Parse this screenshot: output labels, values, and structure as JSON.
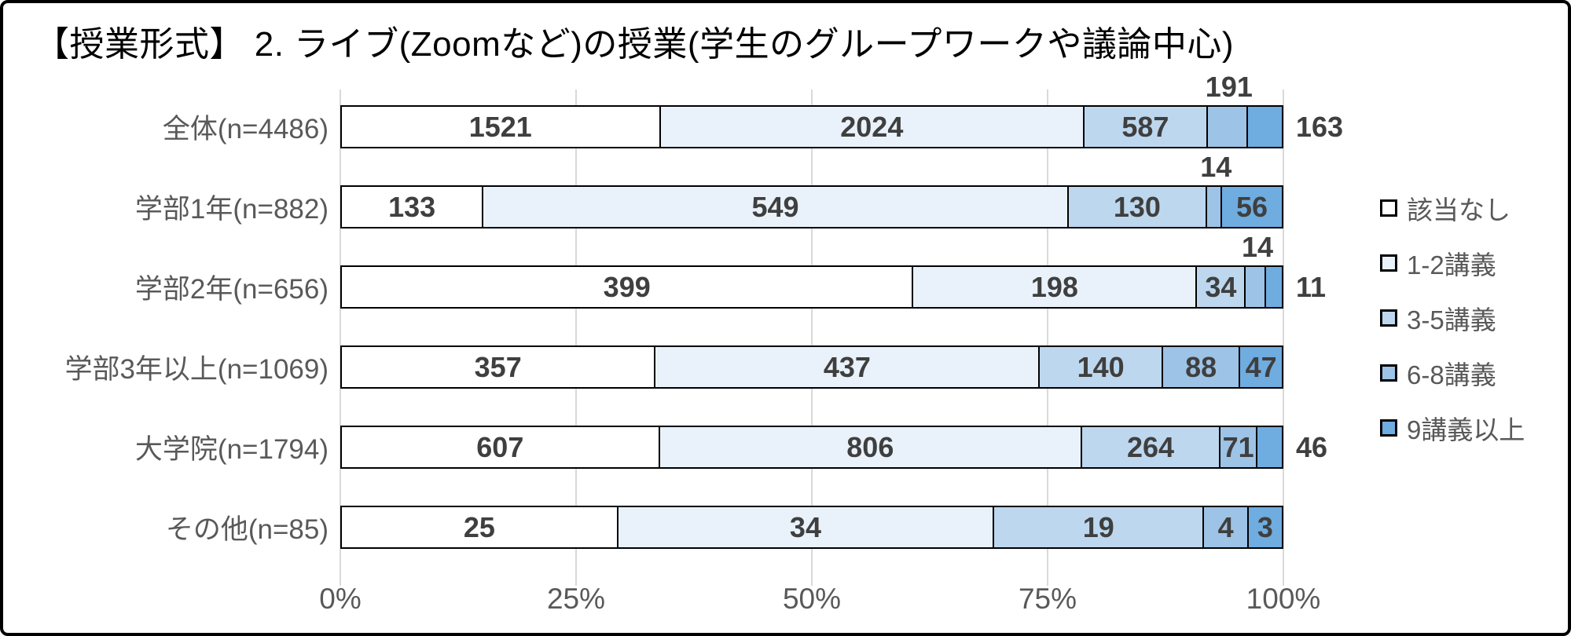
{
  "title": "【授業形式】 2. ライブ(Zoomなど)の授業(学生のグループワークや議論中心)",
  "chart_data": {
    "type": "bar",
    "variant": "100%-stacked-horizontal",
    "title": "【授業形式】 2. ライブ(Zoomなど)の授業(学生のグループワークや議論中心)",
    "x_axis": {
      "ticks": [
        "0%",
        "25%",
        "50%",
        "75%",
        "100%"
      ],
      "range": [
        0,
        100
      ],
      "grid": true
    },
    "legend_position": "right",
    "series": [
      {
        "name": "該当なし",
        "color": "#ffffff"
      },
      {
        "name": "1-2講義",
        "color": "#e9f2fa"
      },
      {
        "name": "3-5講義",
        "color": "#bdd7ee"
      },
      {
        "name": "6-8講義",
        "color": "#9dc3e6"
      },
      {
        "name": "9講義以上",
        "color": "#6face0"
      }
    ],
    "rows": [
      {
        "label": "全体(n=4486)",
        "n": 4486,
        "values": [
          1521,
          2024,
          587,
          191,
          163
        ],
        "placements": [
          "in",
          "in",
          "in",
          "above",
          "right"
        ]
      },
      {
        "label": "学部1年(n=882)",
        "n": 882,
        "values": [
          133,
          549,
          130,
          14,
          56
        ],
        "placements": [
          "in",
          "in",
          "in",
          "above",
          "in"
        ]
      },
      {
        "label": "学部2年(n=656)",
        "n": 656,
        "values": [
          399,
          198,
          34,
          14,
          11
        ],
        "placements": [
          "in",
          "in",
          "in",
          "above",
          "right"
        ]
      },
      {
        "label": "学部3年以上(n=1069)",
        "n": 1069,
        "values": [
          357,
          437,
          140,
          88,
          47
        ],
        "placements": [
          "in",
          "in",
          "in",
          "in",
          "in"
        ]
      },
      {
        "label": "大学院(n=1794)",
        "n": 1794,
        "values": [
          607,
          806,
          264,
          71,
          46
        ],
        "placements": [
          "in",
          "in",
          "in",
          "in",
          "right"
        ]
      },
      {
        "label": "その他(n=85)",
        "n": 85,
        "values": [
          25,
          34,
          19,
          4,
          3
        ],
        "placements": [
          "in",
          "in",
          "in",
          "in",
          "in"
        ]
      }
    ],
    "colors": {
      "grid": "#d9d9d9",
      "bar_border": "#000000",
      "data_label": "#3f3f3f",
      "axis_label": "#595959",
      "title": "#000000"
    }
  }
}
